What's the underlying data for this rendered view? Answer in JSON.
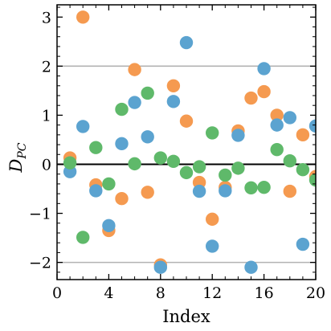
{
  "chart_data": {
    "type": "scatter",
    "xlabel": "Index",
    "ylabel_main": "D",
    "ylabel_sub": "PC",
    "xlim": [
      0,
      20
    ],
    "ylim": [
      -2.35,
      3.25
    ],
    "x_ticks": [
      0,
      4,
      8,
      12,
      16,
      20
    ],
    "x_tick_labels": [
      "0",
      "4",
      "8",
      "12",
      "16",
      "20"
    ],
    "y_ticks": [
      -2,
      -1,
      0,
      1,
      2,
      3
    ],
    "y_tick_labels": [
      "−2",
      "−1",
      "0",
      "1",
      "2",
      "3"
    ],
    "reference_lines": [
      {
        "y": 2,
        "color": "#b3b3b3"
      },
      {
        "y": -2,
        "color": "#b3b3b3"
      },
      {
        "y": 0,
        "color": "#000000"
      }
    ],
    "grid": false,
    "series": [
      {
        "color": "#f59a50",
        "points": [
          {
            "x": 1,
            "y": 0.13
          },
          {
            "x": 2,
            "y": 3.0
          },
          {
            "x": 3,
            "y": -0.42
          },
          {
            "x": 4,
            "y": -1.35
          },
          {
            "x": 5,
            "y": -0.7
          },
          {
            "x": 6,
            "y": 1.93
          },
          {
            "x": 7,
            "y": -0.57
          },
          {
            "x": 8,
            "y": -2.05
          },
          {
            "x": 9,
            "y": 1.6
          },
          {
            "x": 10,
            "y": 0.88
          },
          {
            "x": 11,
            "y": -0.37
          },
          {
            "x": 12,
            "y": -1.12
          },
          {
            "x": 13,
            "y": -0.47
          },
          {
            "x": 14,
            "y": 0.68
          },
          {
            "x": 15,
            "y": 1.35
          },
          {
            "x": 16,
            "y": 1.48
          },
          {
            "x": 17,
            "y": 1.0
          },
          {
            "x": 18,
            "y": -0.55
          },
          {
            "x": 19,
            "y": 0.6
          },
          {
            "x": 20,
            "y": -0.25
          }
        ]
      },
      {
        "color": "#5ba3d0",
        "points": [
          {
            "x": 1,
            "y": -0.15
          },
          {
            "x": 2,
            "y": 0.77
          },
          {
            "x": 3,
            "y": -0.54
          },
          {
            "x": 4,
            "y": -1.25
          },
          {
            "x": 5,
            "y": 0.42
          },
          {
            "x": 6,
            "y": 1.26
          },
          {
            "x": 7,
            "y": 0.56
          },
          {
            "x": 8,
            "y": -2.1
          },
          {
            "x": 9,
            "y": 1.28
          },
          {
            "x": 10,
            "y": 2.48
          },
          {
            "x": 11,
            "y": -0.55
          },
          {
            "x": 12,
            "y": -1.67
          },
          {
            "x": 13,
            "y": -0.54
          },
          {
            "x": 14,
            "y": 0.59
          },
          {
            "x": 15,
            "y": -2.1
          },
          {
            "x": 16,
            "y": 1.95
          },
          {
            "x": 17,
            "y": 0.8
          },
          {
            "x": 18,
            "y": 0.95
          },
          {
            "x": 19,
            "y": -1.63
          },
          {
            "x": 20,
            "y": 0.78
          }
        ]
      },
      {
        "color": "#5fb96a",
        "points": [
          {
            "x": 1,
            "y": 0.03
          },
          {
            "x": 2,
            "y": -1.49
          },
          {
            "x": 3,
            "y": 0.34
          },
          {
            "x": 4,
            "y": -0.4
          },
          {
            "x": 5,
            "y": 1.12
          },
          {
            "x": 6,
            "y": 0.01
          },
          {
            "x": 7,
            "y": 1.45
          },
          {
            "x": 8,
            "y": 0.13
          },
          {
            "x": 9,
            "y": 0.06
          },
          {
            "x": 10,
            "y": -0.17
          },
          {
            "x": 11,
            "y": -0.05
          },
          {
            "x": 12,
            "y": 0.64
          },
          {
            "x": 13,
            "y": -0.22
          },
          {
            "x": 14,
            "y": -0.08
          },
          {
            "x": 15,
            "y": -0.48
          },
          {
            "x": 16,
            "y": -0.47
          },
          {
            "x": 17,
            "y": 0.3
          },
          {
            "x": 18,
            "y": 0.07
          },
          {
            "x": 19,
            "y": -0.11
          },
          {
            "x": 20,
            "y": -0.32
          }
        ]
      }
    ]
  }
}
